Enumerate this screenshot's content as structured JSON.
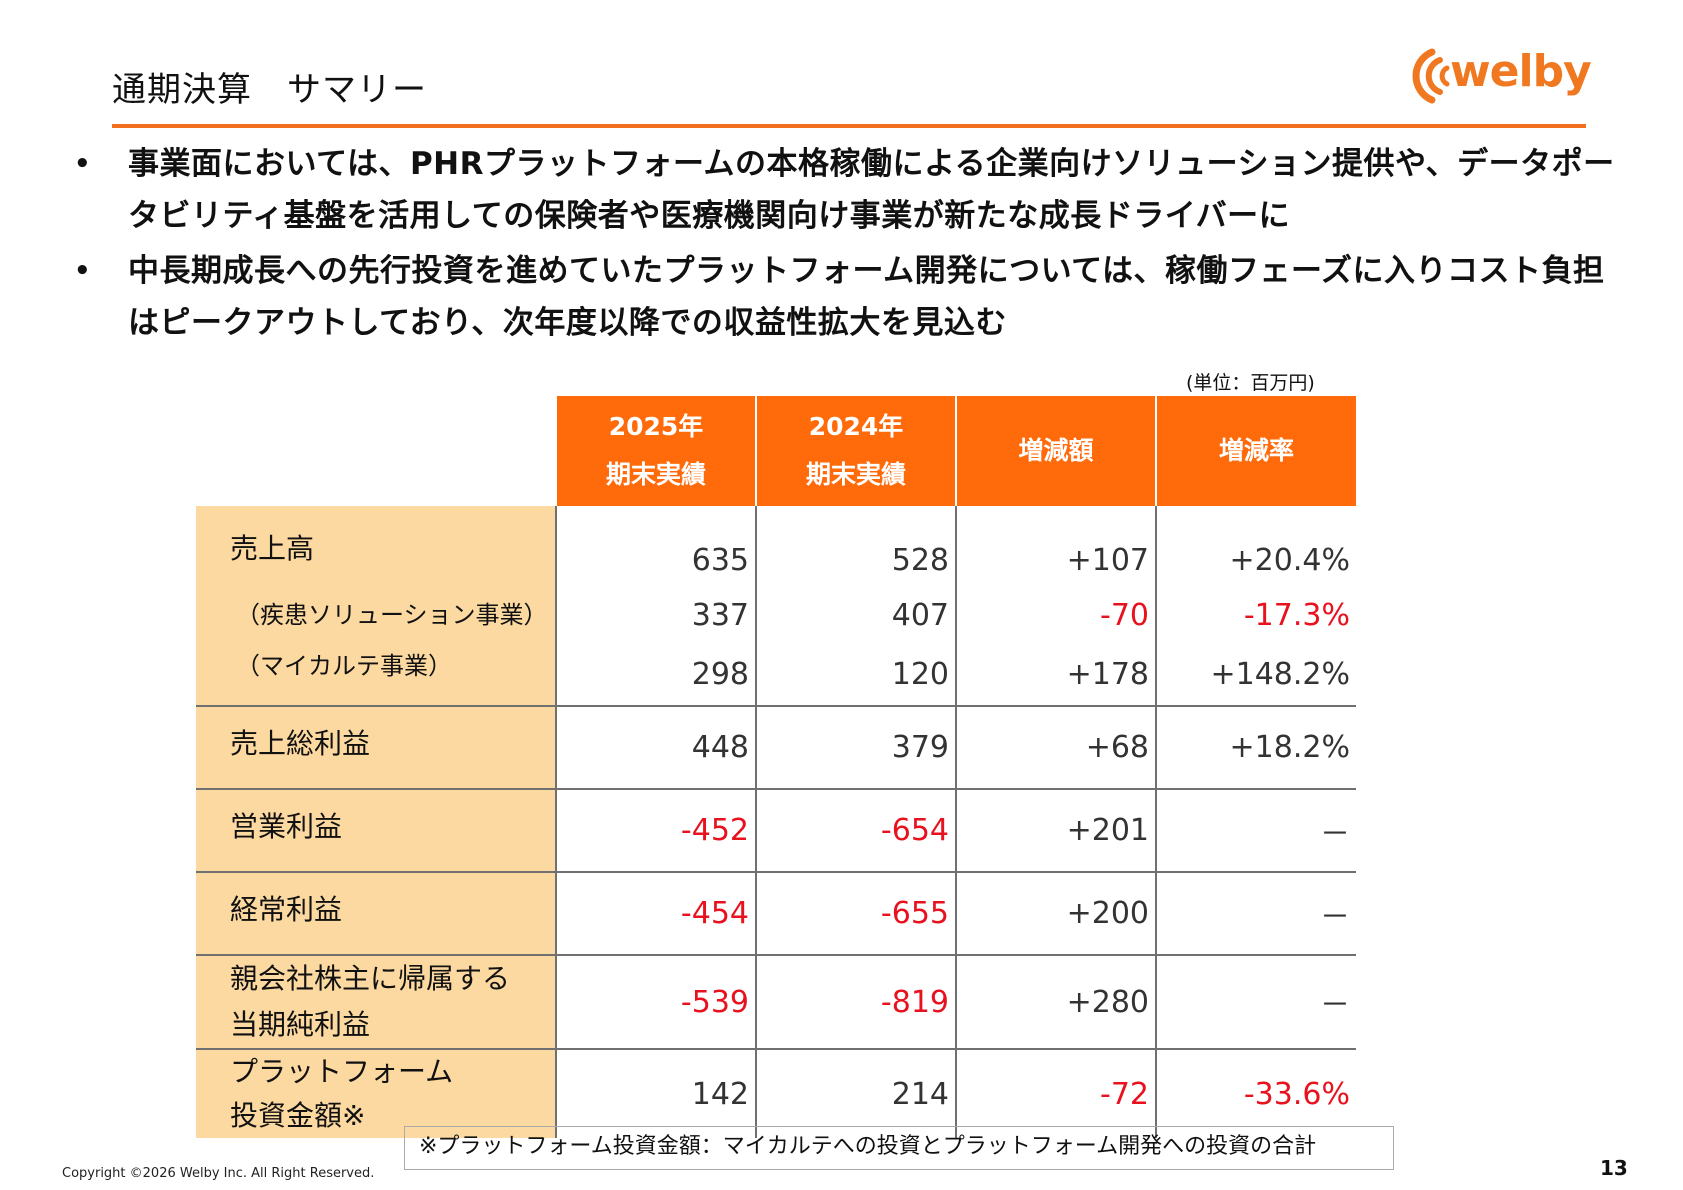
{
  "header": {
    "title": "通期決算　サマリー",
    "logo_text": "welby",
    "accent_color": "#f07020"
  },
  "bullets": [
    "事業面においては、PHRプラットフォームの本格稼働による企業向けソリューション提供や、データポータビリティ基盤を活用しての保険者や医療機関向け事業が新たな成長ドライバーに",
    "中長期成長への先行投資を進めていたプラットフォーム開発については、稼働フェーズに入りコスト負担はピークアウトしており、次年度以降での収益性拡大を見込む"
  ],
  "bullet_marker": "•",
  "table": {
    "unit": "(単位：百万円)",
    "headers": [
      {
        "line1": "2025年",
        "line2": "期末実績"
      },
      {
        "line1": "2024年",
        "line2": "期末実績"
      },
      {
        "line1": "増減額",
        "line2": ""
      },
      {
        "line1": "増減率",
        "line2": ""
      }
    ],
    "rows": [
      {
        "label": "売上高",
        "values": [
          "635",
          "528",
          "+107",
          "+20.4%"
        ]
      },
      {
        "label": "（疾患ソリューション事業）",
        "values": [
          "337",
          "407",
          "-70",
          "-17.3%"
        ]
      },
      {
        "label": "（マイカルテ事業）",
        "values": [
          "298",
          "120",
          "+178",
          "+148.2%"
        ]
      },
      {
        "label": "売上総利益",
        "values": [
          "448",
          "379",
          "+68",
          "+18.2%"
        ]
      },
      {
        "label": "営業利益",
        "values": [
          "-452",
          "-654",
          "+201",
          "－"
        ]
      },
      {
        "label": "経常利益",
        "values": [
          "-454",
          "-655",
          "+200",
          "－"
        ]
      },
      {
        "label1": "親会社株主に帰属する",
        "label2": "当期純利益",
        "values": [
          "-539",
          "-819",
          "+280",
          "－"
        ]
      },
      {
        "label1": "プラットフォーム",
        "label2": "投資金額※",
        "values": [
          "142",
          "214",
          "-72",
          "-33.6%"
        ]
      }
    ]
  },
  "note": "※プラットフォーム投資金額：マイカルテへの投資とプラットフォーム開発への投資の合計",
  "footer": {
    "copyright": "Copyright ©2026 Welby Inc. All Right Reserved.",
    "page_number": "13"
  },
  "colors": {
    "header_fill": "#ff6a0a",
    "label_fill": "#fcd9a0",
    "negative": "#e8121e"
  }
}
